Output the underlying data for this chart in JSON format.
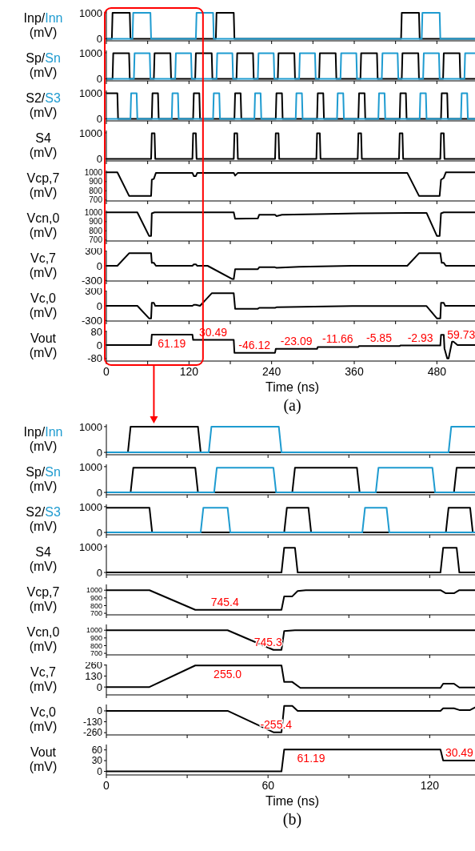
{
  "chart_data": [
    {
      "type": "line",
      "ylabel": "(mV)",
      "xlim": [
        0,
        540
      ],
      "xticks": [
        0,
        {
          "value": 60,
          "label": null
        },
        120,
        {
          "value": 180,
          "label": null
        },
        240,
        {
          "value": 300,
          "label": null
        },
        360,
        {
          "value": 420,
          "label": null
        },
        480
      ],
      "ylim": [
        -80,
        1090
      ],
      "yticks": [
        0,
        1000
      ],
      "tick_labels": "y",
      "series": [
        {
          "name": "Inp/",
          "color": "#000000",
          "x": [
            0,
            8,
            9,
            34,
            35,
            159,
            160,
            185,
            186,
            428,
            429,
            454,
            455,
            540
          ],
          "values": [
            0,
            0,
            1000,
            1000,
            0,
            0,
            1000,
            1000,
            0,
            0,
            1000,
            1000,
            0,
            0
          ]
        },
        {
          "name": "Inn",
          "color": "#1e9bd0",
          "x": [
            0,
            38,
            39,
            64,
            65,
            130,
            131,
            155,
            156,
            458,
            459,
            484,
            485,
            540
          ],
          "values": [
            0,
            0,
            1000,
            1000,
            0,
            0,
            1000,
            1000,
            0,
            0,
            1000,
            1000,
            0,
            0
          ]
        }
      ]
    },
    {
      "type": "line",
      "ylabel": "(mV)",
      "xlim": [
        0,
        540
      ],
      "xticks": [
        0,
        {
          "value": 60,
          "label": null
        },
        120,
        {
          "value": 180,
          "label": null
        },
        240,
        {
          "value": 300,
          "label": null
        },
        360,
        {
          "value": 420,
          "label": null
        },
        480
      ],
      "ylim": [
        -80,
        1090
      ],
      "yticks": [
        0,
        1000
      ],
      "tick_labels": "y",
      "series": [
        {
          "name": "Sp/",
          "color": "#000000",
          "x": [
            0,
            9,
            10,
            33,
            34,
            69,
            70,
            93,
            94,
            129,
            130,
            153,
            154,
            189,
            190,
            213,
            214,
            249,
            250,
            273,
            274,
            309,
            310,
            333,
            334,
            369,
            370,
            393,
            394,
            429,
            430,
            453,
            454,
            489,
            490,
            513,
            514,
            540
          ],
          "values": [
            0,
            0,
            980,
            980,
            0,
            0,
            980,
            980,
            0,
            0,
            980,
            980,
            0,
            0,
            980,
            980,
            0,
            0,
            980,
            980,
            0,
            0,
            980,
            980,
            0,
            0,
            980,
            980,
            0,
            0,
            980,
            980,
            0,
            0,
            980,
            980,
            0,
            0
          ]
        },
        {
          "name": "Sn",
          "color": "#1e9bd0",
          "x": [
            0,
            40,
            41,
            63,
            64,
            100,
            101,
            123,
            124,
            160,
            161,
            183,
            184,
            220,
            221,
            243,
            244,
            280,
            281,
            303,
            304,
            340,
            341,
            363,
            364,
            400,
            401,
            423,
            424,
            460,
            461,
            483,
            484,
            520,
            521,
            540
          ],
          "values": [
            0,
            0,
            980,
            980,
            0,
            0,
            980,
            980,
            0,
            0,
            980,
            980,
            0,
            0,
            980,
            980,
            0,
            0,
            980,
            980,
            0,
            0,
            980,
            980,
            0,
            0,
            980,
            980,
            0,
            0,
            980,
            980,
            0,
            0,
            980,
            980
          ]
        }
      ]
    },
    {
      "type": "line",
      "ylabel": "(mV)",
      "xlim": [
        0,
        540
      ],
      "xticks": [
        0,
        {
          "value": 60,
          "label": null
        },
        120,
        {
          "value": 180,
          "label": null
        },
        240,
        {
          "value": 300,
          "label": null
        },
        360,
        {
          "value": 420,
          "label": null
        },
        480
      ],
      "ylim": [
        -80,
        1090
      ],
      "yticks": [
        0,
        1000
      ],
      "tick_labels": "y",
      "series": [
        {
          "name": "S2/",
          "color": "#000000",
          "x": [
            0,
            16,
            17,
            66,
            67,
            75,
            76,
            126,
            127,
            135,
            136,
            186,
            187,
            195,
            196,
            246,
            247,
            255,
            256,
            306,
            307,
            315,
            316,
            366,
            367,
            375,
            376,
            426,
            427,
            435,
            436,
            486,
            487,
            495,
            496,
            540
          ],
          "values": [
            980,
            980,
            0,
            0,
            980,
            980,
            0,
            0,
            980,
            980,
            0,
            0,
            980,
            980,
            0,
            0,
            980,
            980,
            0,
            0,
            980,
            980,
            0,
            0,
            980,
            980,
            0,
            0,
            980,
            980,
            0,
            0,
            980,
            980,
            0,
            0
          ]
        },
        {
          "name": "S3",
          "color": "#1e9bd0",
          "x": [
            0,
            35,
            36,
            44,
            45,
            95,
            96,
            104,
            105,
            155,
            156,
            164,
            165,
            215,
            216,
            224,
            225,
            275,
            276,
            284,
            285,
            335,
            336,
            344,
            345,
            395,
            396,
            404,
            405,
            455,
            456,
            464,
            465,
            515,
            516,
            524,
            525,
            540
          ],
          "values": [
            0,
            0,
            980,
            980,
            0,
            0,
            980,
            980,
            0,
            0,
            980,
            980,
            0,
            0,
            980,
            980,
            0,
            0,
            980,
            980,
            0,
            0,
            980,
            980,
            0,
            0,
            980,
            980,
            0,
            0,
            980,
            980,
            0,
            0,
            980,
            980,
            0,
            0
          ]
        }
      ]
    },
    {
      "type": "line",
      "ylabel": "(mV)",
      "xlim": [
        0,
        540
      ],
      "xticks": [
        0,
        {
          "value": 60,
          "label": null
        },
        120,
        {
          "value": 180,
          "label": null
        },
        240,
        {
          "value": 300,
          "label": null
        },
        360,
        {
          "value": 420,
          "label": null
        },
        480
      ],
      "ylim": [
        -80,
        1090
      ],
      "yticks": [
        0,
        1000
      ],
      "tick_labels": "y",
      "series": [
        {
          "name": "S4",
          "color": "#000000",
          "x": [
            0,
            65,
            66,
            70,
            71,
            125,
            126,
            130,
            131,
            185,
            186,
            190,
            191,
            245,
            246,
            250,
            251,
            305,
            306,
            310,
            311,
            365,
            366,
            370,
            371,
            425,
            426,
            430,
            431,
            485,
            486,
            490,
            491,
            540
          ],
          "values": [
            0,
            0,
            980,
            980,
            0,
            0,
            980,
            980,
            0,
            0,
            980,
            980,
            0,
            0,
            980,
            980,
            0,
            0,
            980,
            980,
            0,
            0,
            980,
            980,
            0,
            0,
            980,
            980,
            0,
            0,
            980,
            980,
            0,
            0
          ]
        }
      ]
    },
    {
      "type": "line",
      "ylabel": "(mV)",
      "xlim": [
        0,
        540
      ],
      "xticks": [
        0,
        {
          "value": 60,
          "label": null
        },
        120,
        {
          "value": 180,
          "label": null
        },
        240,
        {
          "value": 300,
          "label": null
        },
        360,
        {
          "value": 420,
          "label": null
        },
        480
      ],
      "ylim": [
        690,
        1020
      ],
      "yticks": [
        700,
        800,
        900,
        1000
      ],
      "tick_labels": "y",
      "series": [
        {
          "name": "Vcp,7",
          "color": "#000000",
          "x": [
            0,
            16,
            33,
            65,
            66,
            69,
            72,
            125,
            127,
            130,
            132,
            185,
            187,
            191,
            437,
            454,
            484,
            486,
            490,
            493,
            540
          ],
          "values": [
            1000,
            1000,
            745,
            745,
            920,
            930,
            995,
            995,
            960,
            960,
            995,
            995,
            965,
            995,
            995,
            745,
            745,
            920,
            940,
            1000,
            1000
          ]
        }
      ]
    },
    {
      "type": "line",
      "ylabel": "(mV)",
      "xlim": [
        0,
        540
      ],
      "xticks": [
        0,
        {
          "value": 60,
          "label": null
        },
        120,
        {
          "value": 180,
          "label": null
        },
        240,
        {
          "value": 300,
          "label": null
        },
        360,
        {
          "value": 420,
          "label": null
        },
        480
      ],
      "ylim": [
        690,
        1020
      ],
      "yticks": [
        700,
        800,
        900,
        1000
      ],
      "tick_labels": "y",
      "series": [
        {
          "name": "Vcn,0",
          "color": "#000000",
          "x": [
            0,
            45,
            62,
            65,
            66,
            70,
            185,
            187,
            220,
            222,
            245,
            247,
            255,
            306,
            366,
            465,
            480,
            484,
            486,
            490,
            540
          ],
          "values": [
            1000,
            1000,
            745,
            745,
            990,
            1000,
            1000,
            930,
            935,
            975,
            975,
            960,
            975,
            980,
            990,
            995,
            745,
            745,
            990,
            1000,
            1000
          ]
        }
      ]
    },
    {
      "type": "line",
      "ylabel": "(mV)",
      "xlim": [
        0,
        540
      ],
      "xticks": [
        0,
        {
          "value": 60,
          "label": null
        },
        120,
        {
          "value": 180,
          "label": null
        },
        240,
        {
          "value": 300,
          "label": null
        },
        360,
        {
          "value": 420,
          "label": null
        },
        480
      ],
      "ylim": [
        -310,
        310
      ],
      "yticks": [
        -300,
        0,
        300
      ],
      "tick_labels": "y",
      "series": [
        {
          "name": "Vc,7",
          "color": "#000000",
          "x": [
            0,
            16,
            33,
            65,
            66,
            69,
            72,
            125,
            127,
            130,
            132,
            147,
            183,
            185,
            187,
            220,
            222,
            245,
            247,
            280,
            357,
            437,
            454,
            485,
            487,
            490,
            493,
            540
          ],
          "values": [
            0,
            0,
            255,
            255,
            60,
            60,
            0,
            0,
            30,
            30,
            0,
            0,
            -270,
            -270,
            -70,
            -70,
            -30,
            -30,
            -40,
            -20,
            0,
            0,
            255,
            255,
            60,
            60,
            0,
            0
          ]
        }
      ]
    },
    {
      "type": "line",
      "ylabel": "(mV)",
      "xlim": [
        0,
        540
      ],
      "xticks": [
        0,
        {
          "value": 60,
          "label": null
        },
        120,
        {
          "value": 180,
          "label": null
        },
        240,
        {
          "value": 300,
          "label": null
        },
        360,
        {
          "value": 420,
          "label": null
        },
        480
      ],
      "ylim": [
        -310,
        310
      ],
      "yticks": [
        -300,
        0,
        300
      ],
      "tick_labels": "y",
      "series": [
        {
          "name": "Vc,0",
          "color": "#000000",
          "x": [
            0,
            45,
            62,
            65,
            66,
            69,
            71,
            125,
            127,
            130,
            136,
            153,
            185,
            187,
            220,
            222,
            245,
            247,
            357,
            465,
            480,
            485,
            486,
            490,
            492,
            540
          ],
          "values": [
            0,
            0,
            -255,
            -255,
            60,
            60,
            0,
            0,
            20,
            20,
            0,
            255,
            255,
            -60,
            -60,
            -40,
            -40,
            -30,
            -5,
            -5,
            -255,
            -255,
            60,
            60,
            0,
            0
          ]
        }
      ]
    },
    {
      "type": "line",
      "ylabel": "(mV)",
      "xlabel": "Time (ns)",
      "xlim": [
        0,
        540
      ],
      "xticks": [
        0,
        {
          "value": 60,
          "label": null
        },
        120,
        {
          "value": 180,
          "label": null
        },
        240,
        {
          "value": 300,
          "label": null
        },
        360,
        {
          "value": 420,
          "label": null
        },
        480
      ],
      "ylim": [
        -95,
        85
      ],
      "yticks": [
        -80,
        0,
        80
      ],
      "series": [
        {
          "name": "Vout",
          "color": "#000000",
          "x": [
            0,
            65,
            66,
            125,
            126,
            185,
            186,
            245,
            246,
            306,
            307,
            366,
            367,
            426,
            427,
            485,
            486,
            490,
            491,
            495,
            497,
            502,
            504,
            510,
            520,
            540
          ],
          "values": [
            0,
            0,
            61.19,
            61.19,
            30.49,
            30.49,
            -46.12,
            -46.12,
            -23.09,
            -23.09,
            -11.66,
            -11.66,
            -5.85,
            -5.85,
            -2.93,
            -2.93,
            59.73,
            59.73,
            -20,
            -80,
            -80,
            20,
            20,
            0,
            0,
            0
          ]
        }
      ],
      "annotations": [
        {
          "text": "61.19",
          "x": 95,
          "y": 61.19
        },
        {
          "text": "30.49",
          "x": 155,
          "y": 30.49
        },
        {
          "text": "-46.12",
          "x": 215,
          "y": -46.12
        },
        {
          "text": "-23.09",
          "x": 276,
          "y": -23.09
        },
        {
          "text": "-11.66",
          "x": 336,
          "y": -11.66
        },
        {
          "text": "-5.85",
          "x": 396,
          "y": -5.85
        },
        {
          "text": "-2.93",
          "x": 456,
          "y": -2.93
        },
        {
          "text": "59.73",
          "x": 488,
          "y": 59.73
        },
        "(a)"
      ]
    },
    {
      "type": "line",
      "ylabel": "(mV)",
      "xlim": [
        0,
        138
      ],
      "xticks": [
        0,
        {
          "value": 30,
          "label": null
        },
        60,
        {
          "value": 90,
          "label": null
        },
        120
      ],
      "ylim": [
        -90,
        1090
      ],
      "yticks": [
        0,
        1000
      ],
      "tick_labels": "y",
      "series": [
        {
          "name": "Inp/",
          "color": "#000000",
          "x": [
            0,
            8,
            9,
            34,
            35,
            138
          ],
          "values": [
            0,
            0,
            1000,
            1000,
            0,
            0
          ]
        },
        {
          "name": "Inn",
          "color": "#1e9bd0",
          "x": [
            0,
            38,
            39,
            64,
            65,
            127,
            128,
            138
          ],
          "values": [
            0,
            0,
            1000,
            1000,
            0,
            0,
            1000,
            1000
          ]
        }
      ]
    },
    {
      "type": "line",
      "ylabel": "(mV)",
      "xlim": [
        0,
        138
      ],
      "xticks": [
        0,
        {
          "value": 30,
          "label": null
        },
        60,
        {
          "value": 90,
          "label": null
        },
        120
      ],
      "ylim": [
        -90,
        1090
      ],
      "yticks": [
        0,
        1000
      ],
      "tick_labels": "y",
      "series": [
        {
          "name": "Sp/",
          "color": "#000000",
          "x": [
            0,
            9,
            10,
            33,
            34,
            69,
            70,
            93,
            94,
            129,
            130,
            138
          ],
          "values": [
            0,
            0,
            960,
            960,
            0,
            0,
            960,
            960,
            0,
            0,
            960,
            960
          ]
        },
        {
          "name": "Sn",
          "color": "#1e9bd0",
          "x": [
            0,
            40,
            41,
            62,
            63,
            100,
            101,
            121,
            122,
            138
          ],
          "values": [
            0,
            0,
            960,
            960,
            0,
            0,
            960,
            960,
            0,
            0
          ]
        }
      ]
    },
    {
      "type": "line",
      "ylabel": "(mV)",
      "xlim": [
        0,
        138
      ],
      "xticks": [
        0,
        {
          "value": 30,
          "label": null
        },
        60,
        {
          "value": 90,
          "label": null
        },
        120
      ],
      "ylim": [
        -90,
        1090
      ],
      "yticks": [
        0,
        1000
      ],
      "tick_labels": "y",
      "series": [
        {
          "name": "S2/",
          "color": "#000000",
          "x": [
            0,
            16,
            17,
            66,
            67,
            75,
            76,
            126,
            127,
            135,
            136,
            138
          ],
          "values": [
            960,
            960,
            0,
            0,
            960,
            960,
            0,
            0,
            960,
            960,
            0,
            0
          ]
        },
        {
          "name": "S3",
          "color": "#1e9bd0",
          "x": [
            0,
            35,
            36,
            45,
            46,
            95,
            96,
            104,
            105,
            138
          ],
          "values": [
            0,
            0,
            960,
            960,
            0,
            0,
            960,
            960,
            0,
            0
          ]
        }
      ]
    },
    {
      "type": "line",
      "ylabel": "(mV)",
      "xlim": [
        0,
        138
      ],
      "xticks": [
        0,
        {
          "value": 30,
          "label": null
        },
        60,
        {
          "value": 90,
          "label": null
        },
        120
      ],
      "ylim": [
        -90,
        1090
      ],
      "yticks": [
        0,
        1000
      ],
      "tick_labels": "y",
      "series": [
        {
          "name": "S4",
          "color": "#000000",
          "x": [
            0,
            65,
            66,
            70,
            71,
            124,
            125,
            130,
            131,
            138
          ],
          "values": [
            0,
            0,
            960,
            960,
            0,
            0,
            960,
            960,
            0,
            0
          ]
        }
      ]
    },
    {
      "type": "line",
      "ylabel": "(mV)",
      "xlim": [
        0,
        138
      ],
      "xticks": [
        0,
        {
          "value": 30,
          "label": null
        },
        60,
        {
          "value": 90,
          "label": null
        },
        120
      ],
      "ylim": [
        680,
        1075
      ],
      "yticks": [
        700,
        800,
        900,
        1000
      ],
      "tick_labels": "y",
      "series": [
        {
          "name": "Vcp,7",
          "color": "#000000",
          "x": [
            0,
            16,
            33,
            65,
            66,
            69,
            71,
            74,
            124,
            126,
            129,
            131,
            138
          ],
          "values": [
            1000,
            1000,
            745.4,
            745.4,
            920,
            920,
            990,
            1000,
            1000,
            960,
            960,
            1000,
            1000
          ]
        }
      ],
      "annotations": [
        {
          "text": "745.4",
          "x": 44,
          "y": 745.4
        }
      ]
    },
    {
      "type": "line",
      "ylabel": "(mV)",
      "xlim": [
        0,
        138
      ],
      "xticks": [
        0,
        {
          "value": 30,
          "label": null
        },
        60,
        {
          "value": 90,
          "label": null
        },
        120
      ],
      "ylim": [
        680,
        1075
      ],
      "yticks": [
        700,
        800,
        900,
        1000
      ],
      "tick_labels": "y",
      "series": [
        {
          "name": "Vcn,0",
          "color": "#000000",
          "x": [
            0,
            45,
            62,
            65,
            66,
            70,
            138
          ],
          "values": [
            1000,
            1000,
            745.3,
            745.3,
            990,
            1000,
            1000
          ]
        }
      ],
      "annotations": [
        {
          "text": "745.3",
          "x": 60,
          "y": 745.3
        }
      ]
    },
    {
      "type": "line",
      "ylabel": "(mV)",
      "xlim": [
        0,
        138
      ],
      "xticks": [
        0,
        {
          "value": 30,
          "label": null
        },
        60,
        {
          "value": 90,
          "label": null
        },
        120
      ],
      "ylim": [
        -93,
        267
      ],
      "yticks": [
        0,
        130,
        260
      ],
      "tick_labels": "y",
      "series": [
        {
          "name": "Vc,7",
          "color": "#000000",
          "x": [
            0,
            16,
            33,
            65,
            66,
            69,
            72,
            124,
            125,
            129,
            131,
            138
          ],
          "values": [
            0,
            0,
            255,
            255,
            60,
            60,
            -10,
            -10,
            40,
            40,
            -5,
            -5
          ]
        }
      ],
      "annotations": [
        {
          "text": "255.0",
          "x": 45,
          "y": 255
        }
      ]
    },
    {
      "type": "line",
      "ylabel": "(mV)",
      "xlim": [
        0,
        138
      ],
      "xticks": [
        0,
        {
          "value": 30,
          "label": null
        },
        60,
        {
          "value": 90,
          "label": null
        },
        120
      ],
      "ylim": [
        -287,
        76
      ],
      "yticks": [
        -260,
        -130,
        0
      ],
      "tick_labels": "y",
      "series": [
        {
          "name": "Vc,0",
          "color": "#000000",
          "x": [
            0,
            45,
            62,
            65,
            66,
            69,
            71,
            124,
            125,
            129,
            131,
            135,
            138
          ],
          "values": [
            0,
            0,
            -255.4,
            -255.4,
            60,
            60,
            0,
            0,
            30,
            30,
            10,
            10,
            60
          ]
        }
      ],
      "annotations": [
        {
          "text": "-255.4",
          "x": 63,
          "y": -255.4
        }
      ]
    },
    {
      "type": "line",
      "ylabel": "(mV)",
      "xlabel": "Time (ns)",
      "xlim": [
        0,
        138
      ],
      "xticks": [
        0,
        {
          "value": 30,
          "label": null
        },
        60,
        {
          "value": 90,
          "label": null
        },
        120
      ],
      "ylim": [
        -10,
        75
      ],
      "yticks": [
        0,
        30,
        60
      ],
      "series": [
        {
          "name": "Vout",
          "color": "#000000",
          "x": [
            0,
            65,
            66,
            124,
            125,
            138
          ],
          "values": [
            0,
            0,
            61.19,
            61.19,
            30.49,
            30.49
          ]
        }
      ],
      "annotations": [
        {
          "text": "61.19",
          "x": 76,
          "y": 61.19
        },
        {
          "text": "30.49",
          "x": 131,
          "y": 30.49
        },
        "(b)"
      ]
    }
  ]
}
